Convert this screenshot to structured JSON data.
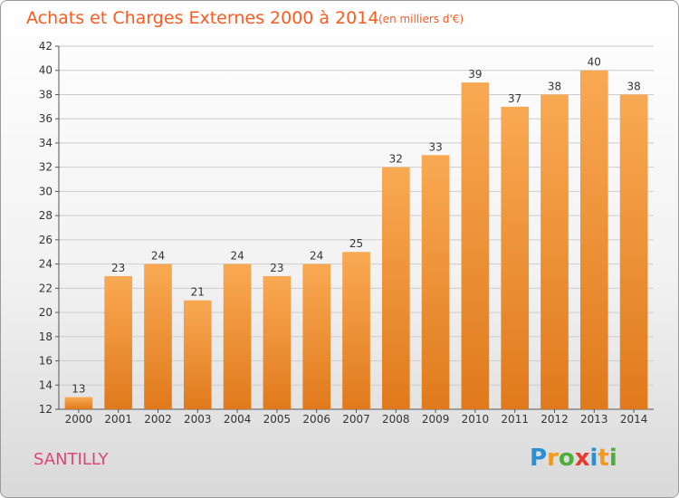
{
  "header": {
    "title": "Achats et Charges Externes 2000 à 2014",
    "unit": "(en milliers d'€)"
  },
  "footer": {
    "commune": "SANTILLY",
    "logo_text": "Proxiti",
    "logo_letters": [
      {
        "char": "P",
        "color": "#2a8fd6"
      },
      {
        "char": "r",
        "color": "#f39a1e"
      },
      {
        "char": "o",
        "color": "#4caf3c"
      },
      {
        "char": "x",
        "color": "#e63a2e"
      },
      {
        "char": "i",
        "color": "#2a8fd6"
      },
      {
        "char": "t",
        "color": "#f39a1e"
      },
      {
        "char": "i",
        "color": "#4caf3c"
      }
    ]
  },
  "colors": {
    "bar_light": "#f9a953",
    "bar_dark": "#e07a1c",
    "grid": "#cccccc",
    "title": "#ff5a1f"
  },
  "chart_data": {
    "type": "bar",
    "title": "Achats et Charges Externes 2000 à 2014",
    "categories": [
      "2000",
      "2001",
      "2002",
      "2003",
      "2004",
      "2005",
      "2006",
      "2007",
      "2008",
      "2009",
      "2010",
      "2011",
      "2012",
      "2013",
      "2014"
    ],
    "values": [
      13,
      23,
      24,
      21,
      24,
      23,
      24,
      25,
      32,
      33,
      39,
      37,
      38,
      40,
      38
    ],
    "ylim": [
      12,
      42
    ],
    "yticks": [
      12,
      14,
      16,
      18,
      20,
      22,
      24,
      26,
      28,
      30,
      32,
      34,
      36,
      38,
      40,
      42
    ],
    "grid": true,
    "xlabel": "",
    "ylabel": ""
  }
}
